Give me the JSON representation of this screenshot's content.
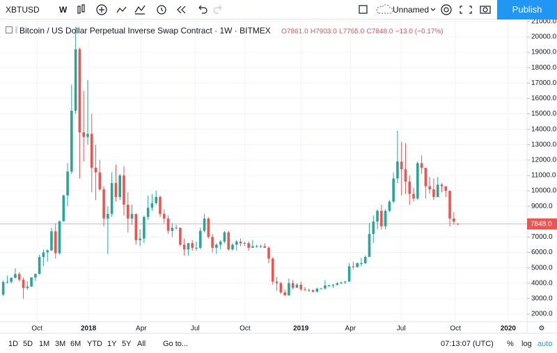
{
  "toolbar": {
    "symbol": "XBTUSD",
    "interval": "W",
    "layout_name": "Unnamed",
    "publish": "Publish"
  },
  "legend": {
    "title": "Bitcoin / US Dollar Perpetual Inverse Swap Contract",
    "interval": "1W",
    "exchange": "BITMEX",
    "open": "O7861.0",
    "high": "H7903.0",
    "low": "L7765.0",
    "close": "C7848.0",
    "change": "−13.0 (−0.17%)"
  },
  "chart_data": {
    "type": "candlestick",
    "up_color": "#26a69a",
    "down_color": "#ef5350",
    "grid": true,
    "price_label": "7848.0",
    "open": [
      3260,
      4070,
      4090,
      4350,
      4600,
      4230,
      3690,
      3780,
      4370,
      4600,
      5700,
      6000,
      6130,
      7370,
      5950,
      8030,
      9700,
      11250,
      15200,
      19200,
      13800,
      13500,
      13700,
      11500,
      11200,
      10100,
      8200,
      8500,
      10500,
      9600,
      11000,
      9100,
      8200,
      8500,
      6800,
      6900,
      8300,
      8900,
      9200,
      9600,
      8500,
      8200,
      7400,
      7600,
      7600,
      6500,
      6200,
      6600,
      6300,
      6300,
      7400,
      8200,
      7000,
      6300,
      6500,
      6700,
      7300,
      6200,
      6500,
      6700,
      6600,
      6600,
      6300,
      6400,
      6400,
      6400,
      6300,
      5600,
      4100,
      4000,
      3400,
      3200,
      4000,
      3700,
      3900,
      3600,
      3550,
      3550,
      3450,
      3650,
      3650,
      3850,
      3850,
      3900,
      4000,
      4050,
      4100,
      5100,
      5050,
      5300,
      5300,
      5700,
      7200,
      8000,
      8700,
      7700,
      8700,
      9300,
      10800,
      11900,
      11400,
      10600,
      9800,
      9500,
      11800,
      11500,
      10300,
      10100,
      9600,
      10400,
      10300,
      10000,
      8200,
      7861
    ],
    "high": [
      4190,
      4480,
      4380,
      4980,
      4720,
      4380,
      4120,
      4400,
      4620,
      5850,
      6190,
      6200,
      7600,
      7890,
      8050,
      9750,
      11800,
      16900,
      20650,
      19300,
      16500,
      17200,
      15000,
      13000,
      12000,
      10300,
      9000,
      11200,
      11700,
      11100,
      11600,
      9900,
      9100,
      8500,
      7500,
      8400,
      9700,
      9800,
      10000,
      9700,
      8800,
      8400,
      7900,
      7800,
      7600,
      6900,
      6600,
      6800,
      6700,
      7600,
      8500,
      8300,
      7200,
      6600,
      6800,
      7400,
      7400,
      6600,
      6800,
      6900,
      6700,
      6700,
      6800,
      6500,
      6500,
      6600,
      6400,
      5700,
      4400,
      4100,
      3600,
      4300,
      4200,
      4000,
      4100,
      3750,
      3650,
      3600,
      3700,
      3700,
      4200,
      3900,
      3950,
      4050,
      4100,
      4150,
      5300,
      5400,
      5350,
      5650,
      5800,
      7900,
      8400,
      8800,
      9100,
      8800,
      9400,
      11200,
      13900,
      13200,
      13100,
      11000,
      10200,
      11900,
      12300,
      11500,
      10900,
      10800,
      10900,
      10500,
      10300,
      10000,
      8600,
      7903
    ],
    "low": [
      3180,
      3960,
      3990,
      4300,
      4100,
      2980,
      3560,
      3760,
      4150,
      4570,
      5100,
      5400,
      6100,
      5600,
      5850,
      8000,
      9000,
      11100,
      15000,
      10800,
      11900,
      13000,
      9900,
      9400,
      10000,
      7700,
      5900,
      8300,
      9300,
      9400,
      8400,
      7300,
      7800,
      6500,
      6400,
      6600,
      8100,
      8700,
      9100,
      8300,
      7900,
      7200,
      7000,
      7500,
      6400,
      5800,
      5800,
      6100,
      6100,
      6200,
      7300,
      6900,
      6000,
      5900,
      6200,
      6600,
      6100,
      6100,
      6100,
      6400,
      6400,
      6100,
      6300,
      6300,
      6300,
      6300,
      5300,
      3900,
      3500,
      3300,
      3200,
      3200,
      3600,
      3700,
      3500,
      3500,
      3450,
      3400,
      3400,
      3600,
      3600,
      3750,
      3700,
      3850,
      3950,
      3950,
      4100,
      4900,
      5000,
      5100,
      5250,
      5700,
      6600,
      7500,
      7500,
      7500,
      8600,
      9200,
      10500,
      9700,
      9800,
      9100,
      9300,
      9400,
      11100,
      9500,
      9800,
      9400,
      9600,
      9900,
      9600,
      7700,
      7800,
      7765
    ],
    "close": [
      4070,
      4090,
      4350,
      4600,
      4230,
      3690,
      3780,
      4370,
      4600,
      5700,
      6000,
      6130,
      7370,
      5950,
      8030,
      9700,
      11250,
      15200,
      19200,
      13800,
      13500,
      13700,
      11500,
      11200,
      10100,
      8200,
      8500,
      10500,
      9600,
      11000,
      9100,
      8200,
      8500,
      6800,
      6900,
      8300,
      8900,
      9200,
      9600,
      8500,
      8200,
      7400,
      7600,
      7600,
      6500,
      6200,
      6600,
      6300,
      6300,
      7400,
      8200,
      7000,
      6300,
      6500,
      6700,
      7300,
      6200,
      6500,
      6700,
      6600,
      6600,
      6300,
      6400,
      6400,
      6400,
      6300,
      5600,
      4100,
      4000,
      3400,
      3200,
      4000,
      3700,
      3900,
      3600,
      3550,
      3550,
      3450,
      3650,
      3650,
      3850,
      3850,
      3900,
      4000,
      4050,
      4100,
      5100,
      5050,
      5300,
      5300,
      5700,
      7200,
      8000,
      8700,
      7700,
      8700,
      9300,
      10800,
      11900,
      11400,
      10600,
      9800,
      9500,
      11800,
      11500,
      10300,
      10100,
      9600,
      10400,
      10300,
      10000,
      8200,
      8000,
      7848
    ],
    "xlim": [
      -0.8,
      130.2
    ],
    "xticks": [
      {
        "value": 8.4,
        "label": "Oct"
      },
      {
        "value": 21.2,
        "label": "2018"
      },
      {
        "value": 34.3,
        "label": "Apr"
      },
      {
        "value": 47.7,
        "label": "Jul"
      },
      {
        "value": 60.1,
        "label": "Oct"
      },
      {
        "value": 74.0,
        "label": "2019"
      },
      {
        "value": 86.3,
        "label": "Apr"
      },
      {
        "value": 98.9,
        "label": "Jul"
      },
      {
        "value": 112.4,
        "label": "Oct"
      },
      {
        "value": 125.5,
        "label": "2020"
      }
    ],
    "ylim": [
      1500,
      21130
    ],
    "yticks": [
      {
        "value": 2000,
        "label": "2000.0"
      },
      {
        "value": 3000,
        "label": "3000.0"
      },
      {
        "value": 4000,
        "label": "4000.0"
      },
      {
        "value": 5000,
        "label": "5000.0"
      },
      {
        "value": 6000,
        "label": "6000.0"
      },
      {
        "value": 7000,
        "label": "7000.0"
      },
      {
        "value": 8000,
        "label": "8000.0"
      },
      {
        "value": 9000,
        "label": "9000.0"
      },
      {
        "value": 10000,
        "label": "10000.0"
      },
      {
        "value": 11000,
        "label": "11000.0"
      },
      {
        "value": 12000,
        "label": "12000.0"
      },
      {
        "value": 13000,
        "label": "13000.0"
      },
      {
        "value": 14000,
        "label": "14000.0"
      },
      {
        "value": 15000,
        "label": "15000.0"
      },
      {
        "value": 16000,
        "label": "16000.0"
      },
      {
        "value": 17000,
        "label": "17000.0"
      },
      {
        "value": 18000,
        "label": "18000.0"
      },
      {
        "value": 19000,
        "label": "19000.0"
      },
      {
        "value": 20000,
        "label": "20000.0"
      },
      {
        "value": 21000,
        "label": "21000.0"
      }
    ]
  },
  "bottom_bar": {
    "ranges": [
      "1D",
      "5D",
      "1M",
      "3M",
      "6M",
      "YTD",
      "1Y",
      "5Y",
      "All"
    ],
    "goto": "Go to...",
    "clock": "07:13:07 (UTC)",
    "percent": "%",
    "log": "log",
    "auto": "auto"
  }
}
